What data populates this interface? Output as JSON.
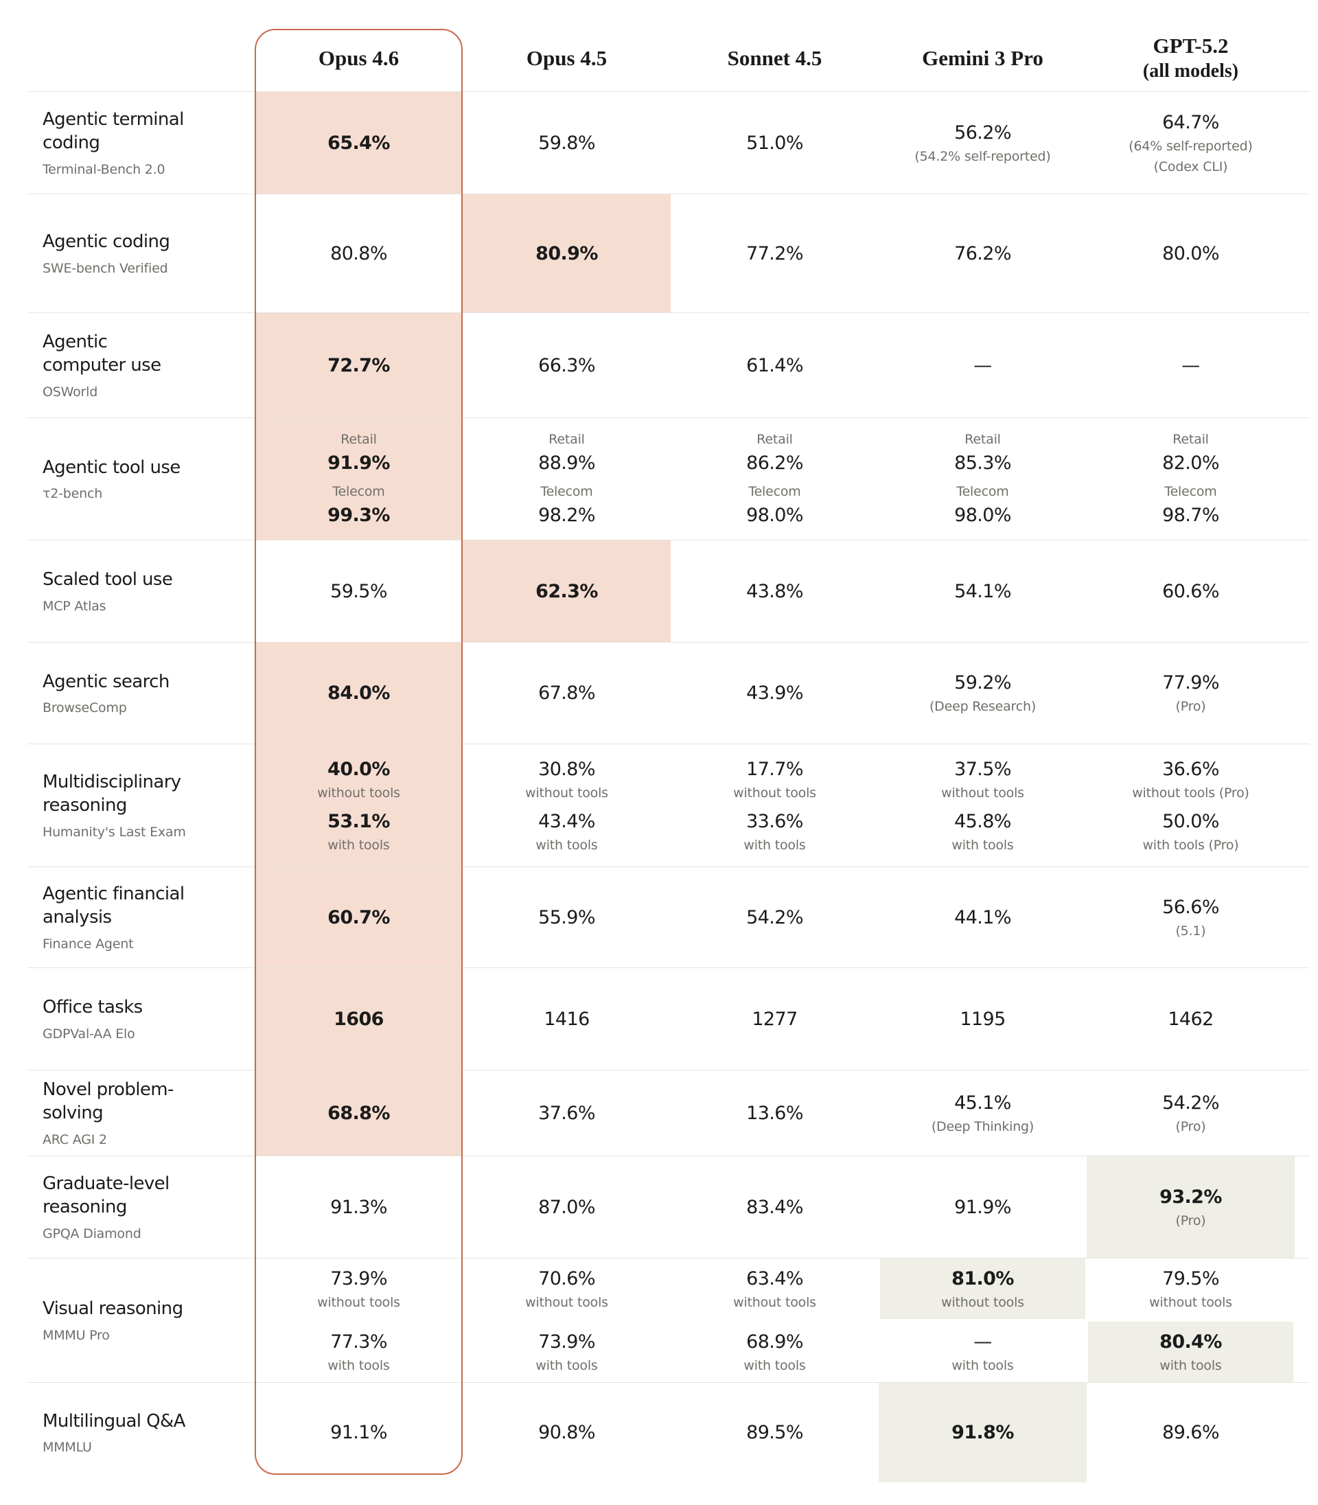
{
  "colors": {
    "highlight_pink": "#f6ddd2",
    "highlight_beige": "#efeee7",
    "accent_orange_outline": "#c86a4b",
    "divider": "#e6e4df",
    "text_dark": "#1b1b1b",
    "text_muted": "#6f6e69"
  },
  "columns": [
    {
      "slug": "opus-4-6",
      "label": "Opus 4.6",
      "outlined": true
    },
    {
      "slug": "opus-4-5",
      "label": "Opus 4.5"
    },
    {
      "slug": "sonnet-4-5",
      "label": "Sonnet 4.5"
    },
    {
      "slug": "gemini-3-pro",
      "label": "Gemini 3 Pro"
    },
    {
      "slug": "gpt-5-2",
      "label": "GPT-5.2",
      "sublabel": "(all models)"
    }
  ],
  "rows": [
    {
      "slug": "agentic-terminal-coding",
      "task": "Agentic terminal coding",
      "benchmark": "Terminal-Bench 2.0",
      "cells": [
        {
          "bg": "pink",
          "blocks": [
            {
              "value": "65.4%",
              "bold": true
            }
          ]
        },
        {
          "blocks": [
            {
              "value": "59.8%"
            }
          ]
        },
        {
          "blocks": [
            {
              "value": "51.0%"
            }
          ]
        },
        {
          "blocks": [
            {
              "value": "56.2%",
              "notes": [
                "(54.2% self-reported)"
              ]
            }
          ]
        },
        {
          "blocks": [
            {
              "value": "64.7%",
              "notes": [
                "(64% self-reported)",
                "(Codex CLI)"
              ]
            }
          ]
        }
      ]
    },
    {
      "slug": "agentic-coding",
      "task": "Agentic coding",
      "benchmark": "SWE-bench Verified",
      "cells": [
        {
          "blocks": [
            {
              "value": "80.8%"
            }
          ]
        },
        {
          "bg": "pink",
          "blocks": [
            {
              "value": "80.9%",
              "bold": true
            }
          ]
        },
        {
          "blocks": [
            {
              "value": "77.2%"
            }
          ]
        },
        {
          "blocks": [
            {
              "value": "76.2%"
            }
          ]
        },
        {
          "blocks": [
            {
              "value": "80.0%"
            }
          ]
        }
      ]
    },
    {
      "slug": "agentic-computer-use",
      "task": "Agentic computer use",
      "benchmark": "OSWorld",
      "cells": [
        {
          "bg": "pink",
          "blocks": [
            {
              "value": "72.7%",
              "bold": true
            }
          ]
        },
        {
          "blocks": [
            {
              "value": "66.3%"
            }
          ]
        },
        {
          "blocks": [
            {
              "value": "61.4%"
            }
          ]
        },
        {
          "blocks": [
            {
              "value": "—"
            }
          ]
        },
        {
          "blocks": [
            {
              "value": "—"
            }
          ]
        }
      ]
    },
    {
      "slug": "agentic-tool-use",
      "task": "Agentic tool use",
      "benchmark": "τ2-bench",
      "cells": [
        {
          "bg": "pink",
          "blocks": [
            {
              "label": "Retail",
              "value": "91.9%",
              "bold": true
            },
            {
              "label": "Telecom",
              "value": "99.3%",
              "bold": true
            }
          ]
        },
        {
          "blocks": [
            {
              "label": "Retail",
              "value": "88.9%"
            },
            {
              "label": "Telecom",
              "value": "98.2%"
            }
          ]
        },
        {
          "blocks": [
            {
              "label": "Retail",
              "value": "86.2%"
            },
            {
              "label": "Telecom",
              "value": "98.0%"
            }
          ]
        },
        {
          "blocks": [
            {
              "label": "Retail",
              "value": "85.3%"
            },
            {
              "label": "Telecom",
              "value": "98.0%"
            }
          ]
        },
        {
          "blocks": [
            {
              "label": "Retail",
              "value": "82.0%"
            },
            {
              "label": "Telecom",
              "value": "98.7%"
            }
          ]
        }
      ]
    },
    {
      "slug": "scaled-tool-use",
      "task": "Scaled tool use",
      "benchmark": "MCP Atlas",
      "cells": [
        {
          "blocks": [
            {
              "value": "59.5%"
            }
          ]
        },
        {
          "bg": "pink",
          "blocks": [
            {
              "value": "62.3%",
              "bold": true
            }
          ]
        },
        {
          "blocks": [
            {
              "value": "43.8%"
            }
          ]
        },
        {
          "blocks": [
            {
              "value": "54.1%"
            }
          ]
        },
        {
          "blocks": [
            {
              "value": "60.6%"
            }
          ]
        }
      ]
    },
    {
      "slug": "agentic-search",
      "task": "Agentic search",
      "benchmark": "BrowseComp",
      "cells": [
        {
          "bg": "pink",
          "blocks": [
            {
              "value": "84.0%",
              "bold": true
            }
          ]
        },
        {
          "blocks": [
            {
              "value": "67.8%"
            }
          ]
        },
        {
          "blocks": [
            {
              "value": "43.9%"
            }
          ]
        },
        {
          "blocks": [
            {
              "value": "59.2%",
              "notes": [
                "(Deep Research)"
              ]
            }
          ]
        },
        {
          "blocks": [
            {
              "value": "77.9%",
              "notes": [
                "(Pro)"
              ]
            }
          ]
        }
      ]
    },
    {
      "slug": "multidisciplinary-reasoning",
      "task": "Multidisciplinary reasoning",
      "benchmark": "Humanity's Last Exam",
      "cells": [
        {
          "bg": "pink",
          "blocks": [
            {
              "value": "40.0%",
              "bold": true,
              "notes": [
                "without tools"
              ]
            },
            {
              "value": "53.1%",
              "bold": true,
              "notes": [
                "with tools"
              ]
            }
          ]
        },
        {
          "blocks": [
            {
              "value": "30.8%",
              "notes": [
                "without tools"
              ]
            },
            {
              "value": "43.4%",
              "notes": [
                "with tools"
              ]
            }
          ]
        },
        {
          "blocks": [
            {
              "value": "17.7%",
              "notes": [
                "without tools"
              ]
            },
            {
              "value": "33.6%",
              "notes": [
                "with tools"
              ]
            }
          ]
        },
        {
          "blocks": [
            {
              "value": "37.5%",
              "notes": [
                "without tools"
              ]
            },
            {
              "value": "45.8%",
              "notes": [
                "with tools"
              ]
            }
          ]
        },
        {
          "blocks": [
            {
              "value": "36.6%",
              "notes": [
                "without tools (Pro)"
              ]
            },
            {
              "value": "50.0%",
              "notes": [
                "with tools (Pro)"
              ]
            }
          ]
        }
      ]
    },
    {
      "slug": "agentic-financial-analysis",
      "task": "Agentic financial analysis",
      "benchmark": "Finance Agent",
      "cells": [
        {
          "bg": "pink",
          "blocks": [
            {
              "value": "60.7%",
              "bold": true
            }
          ]
        },
        {
          "blocks": [
            {
              "value": "55.9%"
            }
          ]
        },
        {
          "blocks": [
            {
              "value": "54.2%"
            }
          ]
        },
        {
          "blocks": [
            {
              "value": "44.1%"
            }
          ]
        },
        {
          "blocks": [
            {
              "value": "56.6%",
              "notes": [
                "(5.1)"
              ]
            }
          ]
        }
      ]
    },
    {
      "slug": "office-tasks",
      "task": "Office tasks",
      "benchmark": "GDPVal-AA Elo",
      "cells": [
        {
          "bg": "pink",
          "blocks": [
            {
              "value": "1606",
              "bold": true
            }
          ]
        },
        {
          "blocks": [
            {
              "value": "1416"
            }
          ]
        },
        {
          "blocks": [
            {
              "value": "1277"
            }
          ]
        },
        {
          "blocks": [
            {
              "value": "1195"
            }
          ]
        },
        {
          "blocks": [
            {
              "value": "1462"
            }
          ]
        }
      ]
    },
    {
      "slug": "novel-problem-solving",
      "task": "Novel problem-solving",
      "benchmark": "ARC AGI 2",
      "cells": [
        {
          "bg": "pink",
          "blocks": [
            {
              "value": "68.8%",
              "bold": true
            }
          ]
        },
        {
          "blocks": [
            {
              "value": "37.6%"
            }
          ]
        },
        {
          "blocks": [
            {
              "value": "13.6%"
            }
          ]
        },
        {
          "blocks": [
            {
              "value": "45.1%",
              "notes": [
                "(Deep Thinking)"
              ]
            }
          ]
        },
        {
          "blocks": [
            {
              "value": "54.2%",
              "notes": [
                "(Pro)"
              ]
            }
          ]
        }
      ]
    },
    {
      "slug": "graduate-level-reasoning",
      "task": "Graduate-level reasoning",
      "benchmark": "GPQA Diamond",
      "cells": [
        {
          "blocks": [
            {
              "value": "91.3%"
            }
          ]
        },
        {
          "blocks": [
            {
              "value": "87.0%"
            }
          ]
        },
        {
          "blocks": [
            {
              "value": "83.4%"
            }
          ]
        },
        {
          "blocks": [
            {
              "value": "91.9%"
            }
          ]
        },
        {
          "bg": "beige",
          "blocks": [
            {
              "value": "93.2%",
              "bold": true,
              "notes": [
                "(Pro)"
              ]
            }
          ]
        }
      ]
    },
    {
      "slug": "visual-reasoning",
      "task": "Visual reasoning",
      "benchmark": "MMMU Pro",
      "split": true,
      "cells": [
        {
          "blocks": [
            {
              "value": "73.9%",
              "notes": [
                "without tools"
              ]
            },
            {
              "value": "77.3%",
              "notes": [
                "with tools"
              ]
            }
          ]
        },
        {
          "blocks": [
            {
              "value": "70.6%",
              "notes": [
                "without tools"
              ]
            },
            {
              "value": "73.9%",
              "notes": [
                "with tools"
              ]
            }
          ]
        },
        {
          "blocks": [
            {
              "value": "63.4%",
              "notes": [
                "without tools"
              ]
            },
            {
              "value": "68.9%",
              "notes": [
                "with tools"
              ]
            }
          ]
        },
        {
          "blocks": [
            {
              "bg": "beige",
              "value": "81.0%",
              "bold": true,
              "notes": [
                "without tools"
              ]
            },
            {
              "value": "—",
              "notes": [
                "with tools"
              ]
            }
          ]
        },
        {
          "blocks": [
            {
              "value": "79.5%",
              "notes": [
                "without tools"
              ]
            },
            {
              "bg": "beige",
              "value": "80.4%",
              "bold": true,
              "notes": [
                "with tools"
              ]
            }
          ]
        }
      ]
    },
    {
      "slug": "multilingual-qa",
      "task": "Multilingual Q&A",
      "benchmark": "MMMLU",
      "cells": [
        {
          "blocks": [
            {
              "value": "91.1%"
            }
          ]
        },
        {
          "blocks": [
            {
              "value": "90.8%"
            }
          ]
        },
        {
          "blocks": [
            {
              "value": "89.5%"
            }
          ]
        },
        {
          "bg": "beige",
          "blocks": [
            {
              "value": "91.8%",
              "bold": true
            }
          ]
        },
        {
          "blocks": [
            {
              "value": "89.6%"
            }
          ]
        }
      ]
    }
  ]
}
